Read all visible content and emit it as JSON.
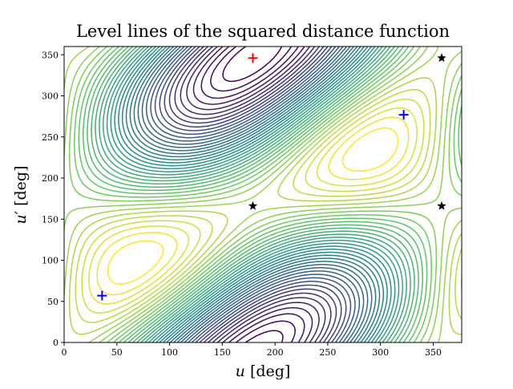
{
  "chart_data": {
    "type": "contour",
    "title": "Level lines of the squared distance function",
    "xlabel": {
      "var": "u",
      "unit": "[deg]"
    },
    "ylabel": {
      "var": "u′",
      "unit": "[deg]"
    },
    "xlim": [
      0,
      377
    ],
    "ylim": [
      0,
      360
    ],
    "xticks": [
      0,
      50,
      100,
      150,
      200,
      250,
      300,
      350
    ],
    "yticks": [
      0,
      50,
      100,
      150,
      200,
      250,
      300,
      350
    ],
    "grid": false,
    "colormap": "viridis",
    "colormap_colors": [
      "#440154",
      "#3b528b",
      "#21918c",
      "#5ec962",
      "#fde725"
    ],
    "contour_levels": 40,
    "markers": [
      {
        "kind": "plus",
        "color": "#ff0000",
        "x": 179,
        "y": 346
      },
      {
        "kind": "plus",
        "color": "#0000ff",
        "x": 36,
        "y": 57
      },
      {
        "kind": "plus",
        "color": "#0000ff",
        "x": 322,
        "y": 277
      },
      {
        "kind": "star",
        "color": "#000000",
        "x": 179,
        "y": 166
      },
      {
        "kind": "star",
        "color": "#000000",
        "x": 358,
        "y": 166
      },
      {
        "kind": "star",
        "color": "#000000",
        "x": 358,
        "y": 346
      }
    ]
  }
}
